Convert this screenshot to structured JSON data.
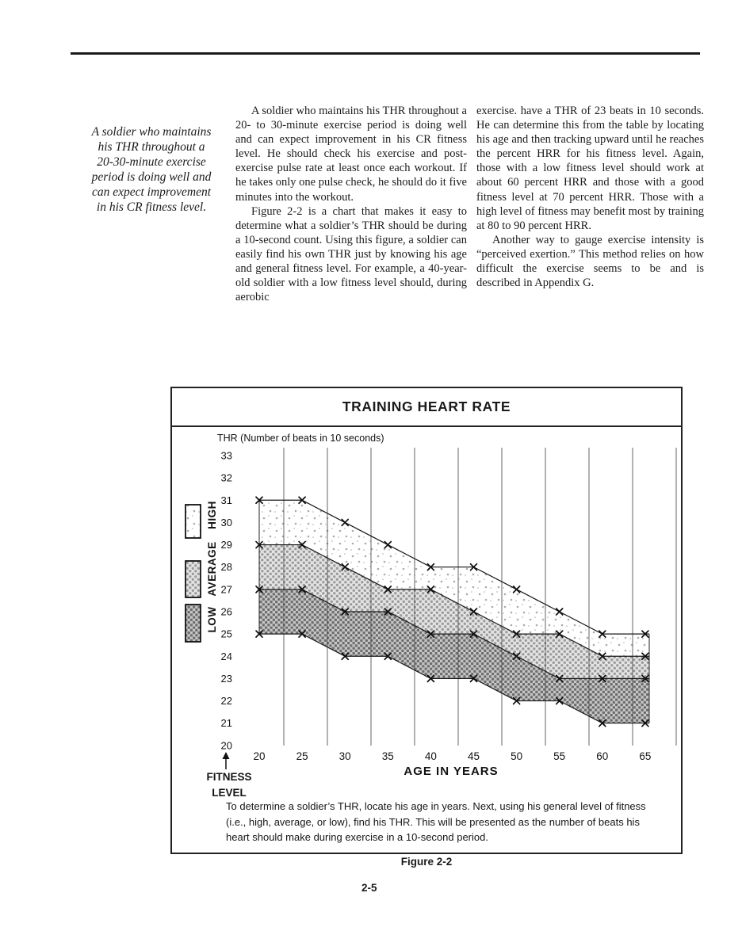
{
  "page": {
    "number": "2-5"
  },
  "pullquote": {
    "lines": [
      "A soldier who maintains",
      "his THR throughout a",
      "20-30-minute exercise",
      "period is doing well and",
      "can expect improvement",
      "in his CR fitness level."
    ]
  },
  "body": {
    "col2": {
      "p1": "A soldier who maintains his THR throughout a 20- to 30-minute exercise period is doing well and can expect improvement in his CR fitness level. He should check his exercise and post-exercise pulse rate at least once each workout. If he takes only one pulse check, he should do it five minutes into the workout.",
      "p2": "Figure 2-2 is a chart that makes it easy to determine what a soldier’s THR should be during a 10-second count. Using this figure, a soldier can easily find his own THR just by knowing his age and general fitness level. For example, a 40-year-old soldier with a low fitness level should, during aerobic"
    },
    "col3": {
      "p1": "exercise. have a THR of 23 beats in 10 seconds. He can determine this from the table by locating his age and then tracking upward until he reaches the percent HRR for his fitness level. Again, those with a low fitness level should work at about 60 percent HRR and those with a good fitness level at 70 percent HRR. Those with a high level of fitness may benefit most by training at 80 to 90 percent HRR.",
      "p2": "Another way to gauge exercise intensity is “perceived exertion.” This method relies on how difficult the exercise seems to be and is described in Appendix G."
    }
  },
  "figure_label": "Figure 2-2",
  "chart_data": {
    "type": "area",
    "title": "TRAINING HEART RATE",
    "ylabel": "THR (Number of beats in 10 seconds)",
    "xlabel": "AGE IN YEARS",
    "fitness_label_line1": "FITNESS",
    "fitness_label_line2": "LEVEL",
    "x": [
      20,
      25,
      30,
      35,
      40,
      45,
      50,
      55,
      60,
      65
    ],
    "yticks": [
      33,
      32,
      31,
      30,
      29,
      28,
      27,
      26,
      25,
      24,
      23,
      22,
      21,
      20
    ],
    "ylim": [
      20,
      33
    ],
    "grid": "vertical",
    "legend_position": "left",
    "marker": "x",
    "legend": [
      {
        "label": "HIGH",
        "band": "high"
      },
      {
        "label": "AVERAGE",
        "band": "average"
      },
      {
        "label": "LOW",
        "band": "low"
      }
    ],
    "series": [
      {
        "name": "high-upper-boundary",
        "values": [
          31,
          31,
          30,
          29,
          28,
          28,
          27,
          26,
          25,
          25
        ]
      },
      {
        "name": "high-lower-average-upper",
        "values": [
          29,
          29,
          28,
          27,
          27,
          26,
          25,
          25,
          24,
          24
        ]
      },
      {
        "name": "average-lower-low-upper",
        "values": [
          27,
          27,
          26,
          26,
          25,
          25,
          24,
          23,
          23,
          23
        ]
      },
      {
        "name": "low-lower-boundary",
        "values": [
          25,
          25,
          24,
          24,
          23,
          23,
          22,
          22,
          21,
          21
        ]
      }
    ],
    "bands": [
      {
        "name": "HIGH",
        "between": [
          0,
          1
        ],
        "pattern": "high"
      },
      {
        "name": "AVERAGE",
        "between": [
          1,
          2
        ],
        "pattern": "average"
      },
      {
        "name": "LOW",
        "between": [
          2,
          3
        ],
        "pattern": "low"
      }
    ],
    "caption": "To determine a soldier’s THR, locate his age in years. Next, using his general level of fitness (i.e., high, average, or low), find his THR. This will be presented as the number of beats his heart should make during exercise in a 10-second period."
  },
  "colors": {
    "ink": "#1b1b1b",
    "grid": "#404040",
    "band_high_bg": "#ffffff",
    "band_high_dot": "#ababab",
    "band_avg_bg": "#e4e4e4",
    "band_avg_dot": "#9b9b9b",
    "band_low_bg": "#c7c7c7",
    "band_low_dot": "#6e6e6e"
  }
}
